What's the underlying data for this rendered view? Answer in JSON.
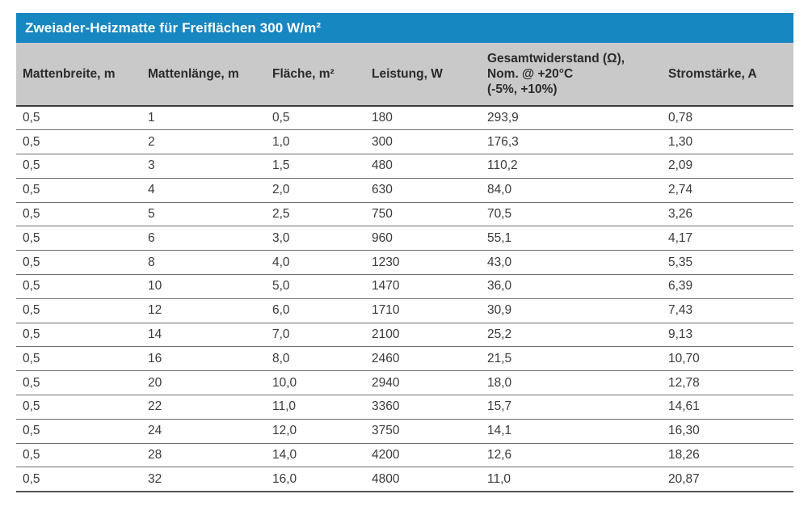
{
  "title": "Zweiader-Heizmatte für Freiflächen 300 W/m²",
  "colors": {
    "title_bg": "#1787c2",
    "title_text": "#ffffff",
    "header_bg": "#c9c9c9",
    "header_text": "#2b2b2b",
    "body_text": "#3a3a3a",
    "row_divider": "#6e6e6e"
  },
  "table": {
    "columns": [
      "Mattenbreite, m",
      "Mattenlänge, m",
      "Fläche, m²",
      "Leistung, W",
      "Gesamtwiderstand (Ω),\nNom. @ +20°C\n(-5%, +10%)",
      "Stromstärke, A"
    ],
    "rows": [
      [
        "0,5",
        "1",
        "0,5",
        "180",
        "293,9",
        "0,78"
      ],
      [
        "0,5",
        "2",
        "1,0",
        "300",
        "176,3",
        "1,30"
      ],
      [
        "0,5",
        "3",
        "1,5",
        "480",
        "110,2",
        "2,09"
      ],
      [
        "0,5",
        "4",
        "2,0",
        "630",
        "84,0",
        "2,74"
      ],
      [
        "0,5",
        "5",
        "2,5",
        "750",
        "70,5",
        "3,26"
      ],
      [
        "0,5",
        "6",
        "3,0",
        "960",
        "55,1",
        "4,17"
      ],
      [
        "0,5",
        "8",
        "4,0",
        "1230",
        "43,0",
        "5,35"
      ],
      [
        "0,5",
        "10",
        "5,0",
        "1470",
        "36,0",
        "6,39"
      ],
      [
        "0,5",
        "12",
        "6,0",
        "1710",
        "30,9",
        "7,43"
      ],
      [
        "0,5",
        "14",
        "7,0",
        "2100",
        "25,2",
        "9,13"
      ],
      [
        "0,5",
        "16",
        "8,0",
        "2460",
        "21,5",
        "10,70"
      ],
      [
        "0,5",
        "20",
        "10,0",
        "2940",
        "18,0",
        "12,78"
      ],
      [
        "0,5",
        "22",
        "11,0",
        "3360",
        "15,7",
        "14,61"
      ],
      [
        "0,5",
        "24",
        "12,0",
        "3750",
        "14,1",
        "16,30"
      ],
      [
        "0,5",
        "28",
        "14,0",
        "4200",
        "12,6",
        "18,26"
      ],
      [
        "0,5",
        "32",
        "16,0",
        "4800",
        "11,0",
        "20,87"
      ]
    ]
  }
}
